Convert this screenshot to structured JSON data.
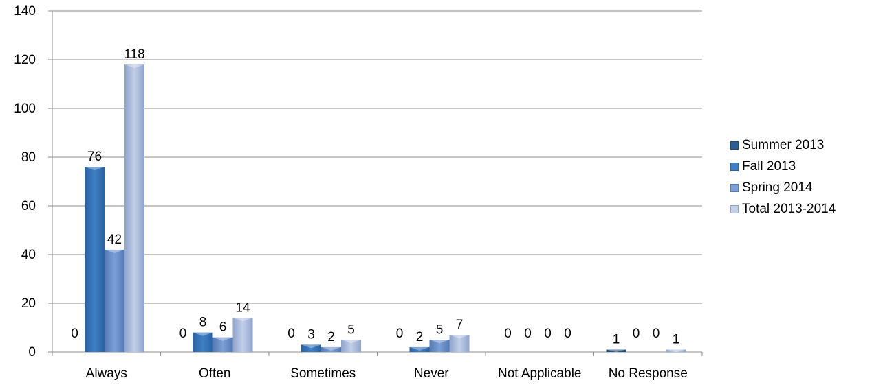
{
  "chart_data": {
    "type": "bar",
    "categories": [
      "Always",
      "Often",
      "Sometimes",
      "Never",
      "Not Applicable",
      "No Response"
    ],
    "series": [
      {
        "name": "Summer 2013",
        "values": [
          0,
          0,
          0,
          0,
          0,
          1
        ],
        "color": "#2c5e96"
      },
      {
        "name": "Fall 2013",
        "values": [
          76,
          8,
          3,
          2,
          0,
          0
        ],
        "color": "#3b76b8"
      },
      {
        "name": "Spring 2014",
        "values": [
          42,
          6,
          2,
          5,
          0,
          0
        ],
        "color": "#6a8fc9"
      },
      {
        "name": "Total 2013-2014",
        "values": [
          118,
          14,
          5,
          7,
          0,
          1
        ],
        "color": "#9fb2d9"
      }
    ],
    "ylim": [
      0,
      140
    ],
    "yticks": [
      0,
      20,
      40,
      60,
      80,
      100,
      120,
      140
    ],
    "grid": true,
    "legend": "right"
  }
}
